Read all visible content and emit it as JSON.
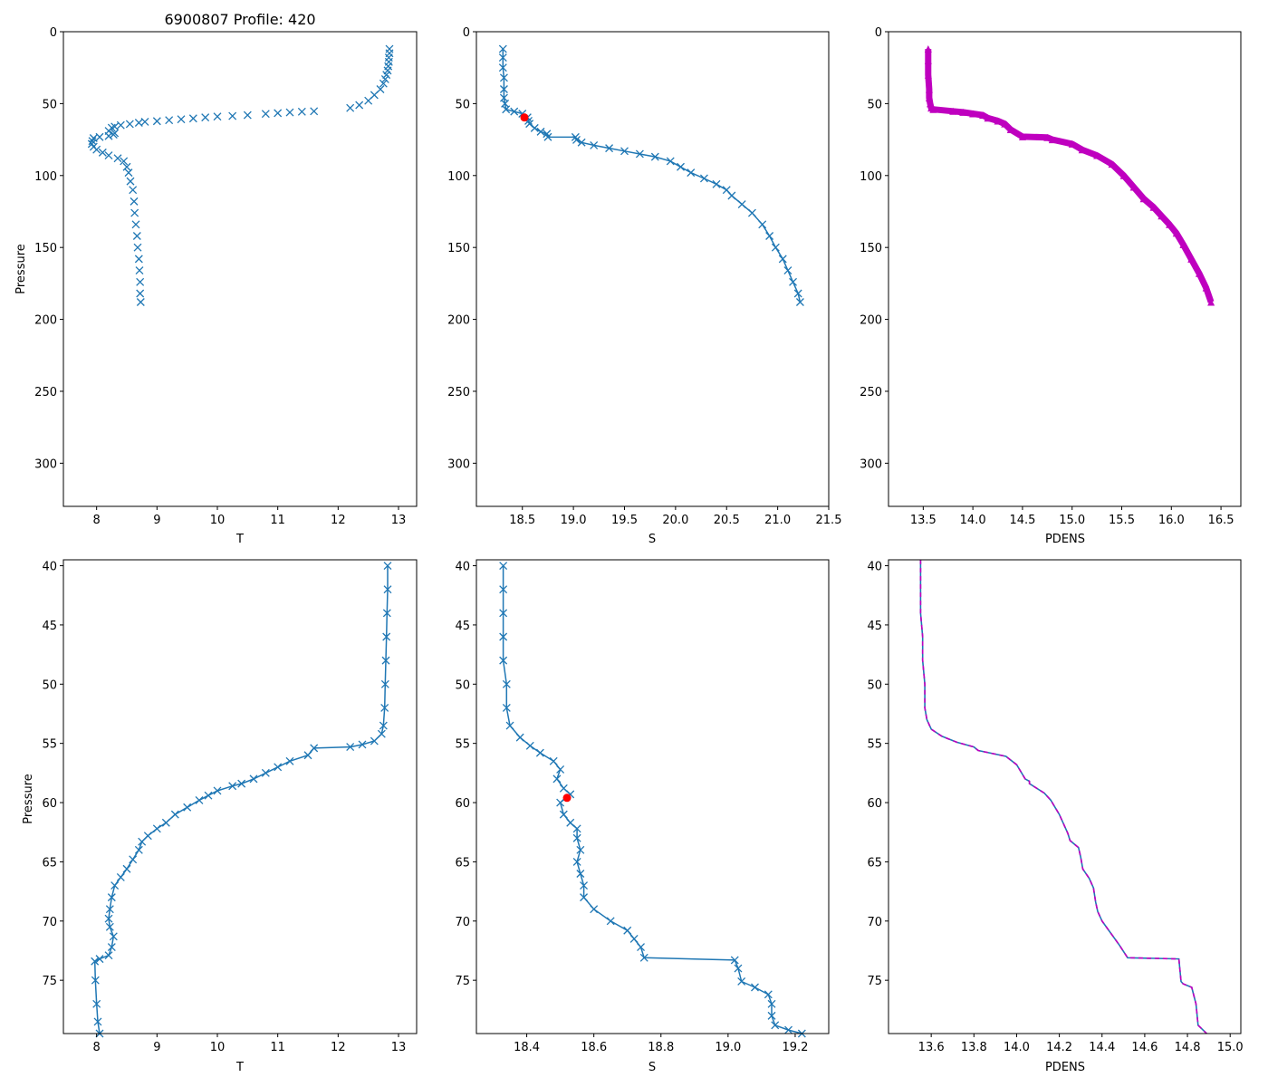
{
  "colors": {
    "series": "#1f77b4",
    "density": "#bf00bf",
    "highlight": "#ff0000"
  },
  "chart_data": [
    {
      "type": "line",
      "title": "6900807 Profile: 420",
      "xlabel": "T",
      "ylabel": "Pressure",
      "xlim": [
        7.45,
        13.3
      ],
      "ylim": [
        330,
        0
      ],
      "xticks": [
        "8",
        "9",
        "10",
        "11",
        "12",
        "13"
      ],
      "yticks": [
        "0",
        "50",
        "100",
        "150",
        "200",
        "250",
        "300"
      ],
      "series": [
        {
          "name": "T",
          "marker": "x",
          "line": false,
          "x": [
            12.85,
            12.85,
            12.84,
            12.84,
            12.83,
            12.82,
            12.8,
            12.78,
            12.75,
            12.7,
            12.6,
            12.5,
            12.35,
            12.2,
            11.6,
            11.4,
            11.2,
            11.0,
            10.8,
            10.5,
            10.25,
            10.0,
            9.8,
            9.6,
            9.4,
            9.2,
            9.0,
            8.8,
            8.7,
            8.55,
            8.4,
            8.3,
            8.25,
            8.2,
            8.3,
            8.28,
            8.2,
            8.05,
            7.95,
            7.93,
            7.92,
            7.95,
            8.0,
            8.1,
            8.2,
            8.35,
            8.45,
            8.5,
            8.53,
            8.56,
            8.6,
            8.62,
            8.63,
            8.65,
            8.67,
            8.68,
            8.7,
            8.71,
            8.72,
            8.72,
            8.73
          ],
          "y": [
            12,
            15,
            18,
            21,
            24,
            27,
            30,
            33,
            36,
            40,
            44,
            48,
            51,
            53,
            55.3,
            55.6,
            56.1,
            56.6,
            57.1,
            58.0,
            58.6,
            59.0,
            59.6,
            60.3,
            60.9,
            61.5,
            62.2,
            62.6,
            63.3,
            64.2,
            65.0,
            66.0,
            66.8,
            69.0,
            70.5,
            71.5,
            72.5,
            73.2,
            74.0,
            76.0,
            78.0,
            80.0,
            82.0,
            84.0,
            86.0,
            88.0,
            90.0,
            94.0,
            98.0,
            104,
            110,
            118,
            126,
            134,
            142,
            150,
            158,
            166,
            174,
            182,
            188
          ]
        }
      ]
    },
    {
      "type": "line",
      "title": "",
      "xlabel": "S",
      "ylabel": "",
      "xlim": [
        18.05,
        21.5
      ],
      "ylim": [
        330,
        0
      ],
      "xticks": [
        "18.5",
        "19.0",
        "19.5",
        "20.0",
        "20.5",
        "21.0",
        "21.5"
      ],
      "yticks": [
        "0",
        "50",
        "100",
        "150",
        "200",
        "250",
        "300"
      ],
      "series": [
        {
          "name": "S",
          "marker": "x",
          "line": true,
          "x": [
            18.31,
            18.31,
            18.31,
            18.32,
            18.32,
            18.32,
            18.33,
            18.34,
            18.42,
            18.5,
            18.55,
            18.56,
            18.57,
            18.62,
            18.68,
            18.74,
            18.75,
            19.02,
            19.03,
            19.08,
            19.2,
            19.35,
            19.5,
            19.65,
            19.8,
            19.95,
            20.05,
            20.15,
            20.28,
            20.4,
            20.5,
            20.55,
            20.65,
            20.75,
            20.85,
            20.92,
            20.98,
            21.05,
            21.1,
            21.15,
            21.2,
            21.22
          ],
          "y": [
            12,
            18,
            25,
            32,
            40,
            46,
            50,
            54,
            55.5,
            57,
            59.6,
            62,
            64,
            67,
            69.5,
            71,
            73.2,
            73.3,
            75.2,
            77,
            79,
            81,
            83,
            85,
            87,
            90,
            94,
            98,
            102,
            106,
            110,
            114,
            120,
            126,
            134,
            142,
            150,
            158,
            166,
            174,
            182,
            188
          ]
        }
      ],
      "highlight": {
        "x": 18.52,
        "y": 59.6
      }
    },
    {
      "type": "line",
      "title": "",
      "xlabel": "PDENS",
      "ylabel": "",
      "xlim": [
        13.15,
        16.7
      ],
      "ylim": [
        330,
        0
      ],
      "xticks": [
        "13.5",
        "14.0",
        "14.5",
        "15.0",
        "15.5",
        "16.0",
        "16.5"
      ],
      "yticks": [
        "0",
        "50",
        "100",
        "150",
        "200",
        "250",
        "300"
      ],
      "series": [
        {
          "name": "PDENS",
          "marker": "^",
          "line": true,
          "x": [
            13.55,
            13.55,
            13.55,
            13.56,
            13.56,
            13.57,
            13.58,
            13.6,
            13.8,
            13.9,
            14.0,
            14.1,
            14.15,
            14.25,
            14.32,
            14.38,
            14.5,
            14.75,
            14.8,
            15.0,
            15.1,
            15.25,
            15.4,
            15.52,
            15.62,
            15.72,
            15.82,
            15.9,
            15.98,
            16.05,
            16.12,
            16.2,
            16.28,
            16.35,
            16.4
          ],
          "y": [
            12,
            20,
            30,
            40,
            46,
            50,
            53,
            54,
            55.3,
            56,
            57,
            58,
            60,
            62,
            64,
            68,
            73,
            73.5,
            75,
            78,
            82,
            86,
            92,
            100,
            108,
            116,
            122,
            128,
            134,
            140,
            148,
            158,
            168,
            178,
            188
          ]
        }
      ]
    },
    {
      "type": "line",
      "title": "",
      "xlabel": "T",
      "ylabel": "Pressure",
      "xlim": [
        7.45,
        13.3
      ],
      "ylim": [
        79.5,
        39.5
      ],
      "xticks": [
        "8",
        "9",
        "10",
        "11",
        "12",
        "13"
      ],
      "yticks": [
        "40",
        "45",
        "50",
        "55",
        "60",
        "65",
        "70",
        "75"
      ],
      "series": [
        {
          "name": "T",
          "marker": "x",
          "line": true,
          "x": [
            12.82,
            12.82,
            12.81,
            12.8,
            12.79,
            12.78,
            12.77,
            12.75,
            12.72,
            12.6,
            12.4,
            12.2,
            11.6,
            11.5,
            11.2,
            11.0,
            10.8,
            10.6,
            10.4,
            10.25,
            10.0,
            9.85,
            9.7,
            9.5,
            9.3,
            9.15,
            9.0,
            8.85,
            8.75,
            8.7,
            8.6,
            8.5,
            8.4,
            8.3,
            8.25,
            8.22,
            8.2,
            8.22,
            8.28,
            8.25,
            8.2,
            8.05,
            7.97,
            7.98,
            8.0,
            8.02,
            8.05
          ],
          "y": [
            40,
            42,
            44,
            46,
            48,
            50,
            52,
            53.5,
            54.2,
            54.8,
            55.1,
            55.3,
            55.4,
            56.0,
            56.5,
            57.0,
            57.5,
            58.0,
            58.4,
            58.6,
            59.0,
            59.4,
            59.8,
            60.4,
            61.0,
            61.7,
            62.2,
            62.8,
            63.3,
            64.0,
            64.8,
            65.6,
            66.3,
            67.0,
            68.0,
            69.0,
            69.8,
            70.5,
            71.3,
            72.2,
            72.9,
            73.2,
            73.4,
            75.0,
            77.0,
            78.5,
            79.5
          ]
        }
      ]
    },
    {
      "type": "line",
      "title": "",
      "xlabel": "S",
      "ylabel": "",
      "xlim": [
        18.25,
        19.3
      ],
      "ylim": [
        79.5,
        39.5
      ],
      "xticks": [
        "18.4",
        "18.6",
        "18.8",
        "19.0",
        "19.2"
      ],
      "yticks": [
        "40",
        "45",
        "50",
        "55",
        "60",
        "65",
        "70",
        "75"
      ],
      "series": [
        {
          "name": "S",
          "marker": "x",
          "line": true,
          "x": [
            18.33,
            18.33,
            18.33,
            18.33,
            18.33,
            18.34,
            18.34,
            18.35,
            18.38,
            18.41,
            18.44,
            18.48,
            18.5,
            18.49,
            18.51,
            18.53,
            18.5,
            18.51,
            18.53,
            18.55,
            18.55,
            18.56,
            18.55,
            18.56,
            18.57,
            18.57,
            18.6,
            18.65,
            18.7,
            18.72,
            18.74,
            18.75,
            19.02,
            19.03,
            19.04,
            19.08,
            19.12,
            19.13,
            19.13,
            19.14,
            19.18,
            19.22
          ],
          "y": [
            40,
            42,
            44,
            46,
            48,
            50,
            52,
            53.5,
            54.5,
            55.2,
            55.8,
            56.5,
            57.2,
            58.0,
            58.8,
            59.3,
            60.0,
            61.0,
            61.7,
            62.2,
            63.0,
            64.0,
            65.0,
            66.0,
            67.0,
            68.0,
            69.0,
            70.0,
            70.8,
            71.5,
            72.2,
            73.1,
            73.3,
            74.0,
            75.1,
            75.6,
            76.2,
            77.0,
            78.0,
            78.8,
            79.2,
            79.5
          ]
        }
      ],
      "highlight": {
        "x": 18.52,
        "y": 59.6
      }
    },
    {
      "type": "line",
      "title": "",
      "xlabel": "PDENS",
      "ylabel": "",
      "xlim": [
        13.4,
        15.05
      ],
      "ylim": [
        79.5,
        39.5
      ],
      "xticks": [
        "13.6",
        "13.8",
        "14.0",
        "14.2",
        "14.4",
        "14.6",
        "14.8",
        "15.0"
      ],
      "yticks": [
        "40",
        "45",
        "50",
        "55",
        "60",
        "65",
        "70",
        "75"
      ],
      "series": [
        {
          "name": "PDENS",
          "marker": "",
          "line": true,
          "dashed_overlay": true,
          "x": [
            13.55,
            13.55,
            13.55,
            13.56,
            13.56,
            13.57,
            13.57,
            13.58,
            13.6,
            13.65,
            13.72,
            13.8,
            13.82,
            13.95,
            14.0,
            14.02,
            14.04,
            14.06,
            14.06,
            14.13,
            14.16,
            14.18,
            14.2,
            14.22,
            14.24,
            14.25,
            14.29,
            14.3,
            14.31,
            14.34,
            14.36,
            14.37,
            14.38,
            14.4,
            14.44,
            14.48,
            14.52,
            14.76,
            14.77,
            14.78,
            14.82,
            14.84,
            14.85,
            14.89
          ],
          "y": [
            39.5,
            42,
            44,
            46,
            48,
            50,
            52,
            53,
            53.8,
            54.4,
            54.9,
            55.3,
            55.6,
            56.1,
            56.8,
            57.4,
            58.0,
            58.2,
            58.4,
            59.2,
            59.8,
            60.4,
            61.0,
            61.8,
            62.6,
            63.2,
            63.8,
            64.6,
            65.6,
            66.4,
            67.2,
            68.4,
            69.2,
            70.0,
            71.0,
            72.0,
            73.1,
            73.2,
            75.1,
            75.3,
            75.6,
            77.0,
            78.8,
            79.5
          ]
        }
      ]
    }
  ]
}
